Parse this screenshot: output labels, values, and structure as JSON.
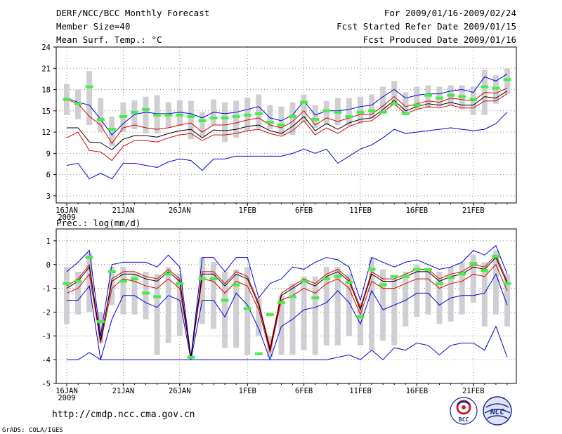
{
  "header": {
    "left": [
      "DERF/NCC/BCC Monthly Forecast",
      "Member Size=40",
      "Mean Surf. Temp.: °C"
    ],
    "right": [
      "For 2009/01/16-2009/02/24",
      "Fcst Started Refer Date 2009/01/15",
      "Fcst Produced Date 2009/01/16"
    ]
  },
  "footer": {
    "url": "http://cmdp.ncc.cma.gov.cn",
    "grads": "GrADS: COLA/IGES",
    "logo_bcc": "BCC",
    "logo_ncc": "NCC"
  },
  "colors": {
    "box": "#cfcfd3",
    "obs": "#44ee44",
    "median": "#000000",
    "iqr": "#dd0000",
    "minmax": "#0000dd",
    "grid": "#777777"
  },
  "chart_data": [
    {
      "type": "boxplot",
      "title": "",
      "xlabel": "",
      "ylabel": "Mean Surf. Temp. (°C)",
      "ylim": [
        2,
        24
      ],
      "yticks": [
        "3",
        "6",
        "9",
        "12",
        "15",
        "18",
        "21",
        "24"
      ],
      "x_days": [
        1,
        40
      ],
      "xticks": [
        {
          "day": 1,
          "label": "16JAN",
          "sub": "2009"
        },
        {
          "day": 6,
          "label": "21JAN"
        },
        {
          "day": 11,
          "label": "26JAN"
        },
        {
          "day": 17,
          "label": "1FEB"
        },
        {
          "day": 22,
          "label": "6FEB"
        },
        {
          "day": 27,
          "label": "11FEB"
        },
        {
          "day": 32,
          "label": "16FEB"
        },
        {
          "day": 37,
          "label": "21FEB"
        }
      ],
      "grid": true,
      "series": [
        {
          "name": "max",
          "values": [
            16.8,
            16.2,
            15.8,
            13.8,
            11.6,
            13.2,
            14.5,
            14.8,
            14.6,
            14.6,
            14.8,
            14.6,
            14.0,
            14.8,
            14.6,
            14.8,
            15.2,
            15.6,
            14.0,
            13.6,
            14.4,
            16.4,
            14.4,
            15.0,
            15.0,
            15.2,
            15.6,
            15.8,
            17.0,
            18.0,
            16.8,
            17.2,
            17.4,
            17.4,
            17.8,
            18.0,
            17.6,
            19.8,
            19.2,
            20.2
          ]
        },
        {
          "name": "q3",
          "values": [
            16.6,
            16.0,
            14.2,
            13.0,
            10.4,
            12.6,
            13.0,
            12.6,
            12.4,
            12.6,
            13.0,
            13.3,
            12.0,
            13.0,
            13.0,
            13.3,
            13.7,
            14.0,
            13.0,
            12.6,
            13.5,
            15.0,
            13.0,
            14.0,
            13.5,
            14.0,
            14.5,
            14.5,
            15.7,
            17.0,
            15.6,
            16.0,
            16.4,
            16.2,
            16.8,
            16.6,
            16.4,
            17.6,
            17.5,
            18.2
          ]
        },
        {
          "name": "median",
          "values": [
            12.6,
            12.6,
            10.6,
            10.5,
            9.5,
            11.0,
            11.5,
            11.5,
            11.3,
            11.8,
            12.2,
            12.4,
            11.2,
            12.3,
            12.2,
            12.4,
            12.8,
            13.0,
            12.2,
            11.8,
            12.8,
            14.2,
            12.2,
            13.2,
            12.4,
            13.3,
            13.8,
            14.0,
            15.2,
            16.5,
            15.0,
            15.6,
            16.0,
            15.8,
            16.2,
            15.8,
            15.8,
            17.0,
            16.8,
            17.8
          ]
        },
        {
          "name": "q1",
          "values": [
            11.2,
            12.0,
            9.4,
            9.2,
            8.0,
            10.0,
            10.8,
            10.8,
            10.6,
            11.2,
            11.6,
            11.8,
            10.8,
            11.6,
            11.6,
            11.8,
            12.2,
            12.4,
            11.8,
            11.4,
            12.2,
            13.6,
            11.6,
            12.6,
            11.8,
            12.8,
            13.4,
            13.6,
            14.8,
            16.0,
            14.6,
            15.2,
            15.6,
            15.4,
            15.8,
            15.4,
            15.4,
            16.4,
            16.4,
            17.4
          ]
        },
        {
          "name": "min",
          "values": [
            7.3,
            7.6,
            5.4,
            6.2,
            5.4,
            7.6,
            7.6,
            7.3,
            7.0,
            7.8,
            8.2,
            8.0,
            6.6,
            8.2,
            8.2,
            8.6,
            8.6,
            8.6,
            8.6,
            8.6,
            9.0,
            9.6,
            9.0,
            9.6,
            7.6,
            8.6,
            9.6,
            10.2,
            11.2,
            12.4,
            11.8,
            12.0,
            12.2,
            12.4,
            12.6,
            12.4,
            12.2,
            12.4,
            13.2,
            14.8
          ]
        },
        {
          "name": "box_top",
          "values": [
            18.8,
            18.0,
            20.6,
            16.8,
            14.2,
            16.2,
            16.5,
            17.0,
            17.2,
            16.2,
            16.5,
            16.4,
            14.8,
            16.6,
            16.2,
            16.4,
            16.9,
            17.3,
            15.8,
            15.6,
            16.2,
            17.3,
            15.8,
            16.4,
            16.8,
            16.8,
            17.0,
            17.3,
            18.4,
            19.2,
            17.6,
            18.4,
            18.6,
            18.4,
            18.6,
            18.6,
            18.4,
            20.8,
            20.0,
            21.0
          ]
        },
        {
          "name": "box_bottom",
          "values": [
            14.4,
            13.8,
            13.0,
            12.0,
            10.0,
            12.0,
            12.4,
            11.8,
            11.8,
            12.6,
            12.8,
            11.0,
            11.4,
            13.0,
            10.6,
            11.2,
            12.2,
            12.5,
            12.4,
            11.6,
            11.6,
            13.4,
            12.6,
            13.0,
            13.0,
            12.9,
            13.2,
            14.0,
            15.2,
            16.0,
            14.8,
            15.2,
            15.4,
            15.6,
            15.8,
            15.2,
            14.4,
            14.4,
            16.0,
            17.4
          ]
        },
        {
          "name": "observed",
          "values": [
            16.6,
            16.0,
            18.4,
            13.8,
            12.4,
            14.2,
            14.8,
            15.2,
            14.4,
            14.4,
            14.4,
            14.2,
            13.6,
            14.0,
            14.0,
            14.2,
            14.4,
            14.6,
            13.4,
            13.0,
            14.2,
            16.2,
            13.8,
            15.0,
            14.8,
            14.2,
            14.8,
            15.0,
            14.8,
            16.0,
            14.6,
            15.8,
            17.2,
            16.8,
            17.2,
            17.0,
            16.6,
            18.4,
            18.2,
            19.4
          ]
        }
      ]
    },
    {
      "type": "boxplot",
      "title": "Prec.: log(mm/d)",
      "xlabel": "",
      "ylabel": "log(mm/d)",
      "ylim": [
        -5,
        1.5
      ],
      "yticks": [
        "-5",
        "-4",
        "-3",
        "-2",
        "-1",
        "0",
        "1"
      ],
      "x_days": [
        1,
        40
      ],
      "xticks": [
        {
          "day": 1,
          "label": "16JAN",
          "sub": "2009"
        },
        {
          "day": 6,
          "label": "21JAN"
        },
        {
          "day": 11,
          "label": "26JAN"
        },
        {
          "day": 17,
          "label": "1FEB"
        },
        {
          "day": 22,
          "label": "6FEB"
        },
        {
          "day": 27,
          "label": "11FEB"
        },
        {
          "day": 32,
          "label": "16FEB"
        },
        {
          "day": 37,
          "label": "21FEB"
        }
      ],
      "grid": true,
      "series": [
        {
          "name": "max",
          "values": [
            -0.3,
            0.1,
            0.6,
            -3.0,
            0.0,
            0.1,
            0.1,
            0.1,
            -0.1,
            0.4,
            -0.1,
            -3.9,
            0.3,
            0.3,
            -0.3,
            0.3,
            0.3,
            -1.4,
            -0.8,
            -0.6,
            -0.1,
            -0.2,
            0.1,
            0.3,
            0.2,
            -0.1,
            -1.5,
            0.3,
            0.1,
            -0.1,
            0.1,
            0.2,
            0.0,
            -0.2,
            -0.1,
            0.1,
            0.6,
            0.4,
            0.8,
            -0.4
          ]
        },
        {
          "name": "q3",
          "values": [
            -0.9,
            -0.6,
            0.0,
            -3.2,
            -0.6,
            -0.3,
            -0.3,
            -0.5,
            -0.6,
            -0.2,
            -0.6,
            -3.9,
            -0.3,
            -0.3,
            -0.8,
            -0.3,
            -0.5,
            -1.6,
            -3.5,
            -1.2,
            -0.9,
            -0.6,
            -0.8,
            -0.4,
            -0.2,
            -0.6,
            -1.8,
            -0.3,
            -0.6,
            -0.6,
            -0.4,
            -0.2,
            -0.2,
            -0.6,
            -0.4,
            -0.3,
            0.0,
            -0.1,
            0.4,
            -0.7
          ]
        },
        {
          "name": "median",
          "values": [
            -1.0,
            -0.7,
            -0.1,
            -3.2,
            -0.7,
            -0.4,
            -0.4,
            -0.6,
            -0.7,
            -0.3,
            -0.7,
            -3.9,
            -0.4,
            -0.4,
            -0.9,
            -0.4,
            -0.6,
            -1.7,
            -3.6,
            -1.3,
            -1.0,
            -0.7,
            -0.9,
            -0.5,
            -0.3,
            -0.7,
            -1.9,
            -0.4,
            -0.7,
            -0.7,
            -0.5,
            -0.3,
            -0.3,
            -0.7,
            -0.5,
            -0.4,
            -0.1,
            -0.2,
            0.3,
            -0.8
          ]
        },
        {
          "name": "q1",
          "values": [
            -1.2,
            -1.0,
            -0.4,
            -3.3,
            -1.0,
            -0.6,
            -0.7,
            -0.9,
            -1.0,
            -0.6,
            -1.0,
            -3.9,
            -0.6,
            -0.7,
            -1.2,
            -0.7,
            -0.9,
            -1.9,
            -3.7,
            -1.5,
            -1.3,
            -1.0,
            -1.2,
            -0.8,
            -0.6,
            -1.0,
            -2.1,
            -0.7,
            -1.0,
            -1.0,
            -0.8,
            -0.6,
            -0.6,
            -1.0,
            -0.8,
            -0.7,
            -0.4,
            -0.5,
            0.0,
            -1.1
          ]
        },
        {
          "name": "min",
          "values": [
            -1.5,
            -1.5,
            -0.9,
            -4.0,
            -2.3,
            -1.3,
            -1.3,
            -1.6,
            -1.8,
            -1.3,
            -1.5,
            -4.0,
            -1.5,
            -1.5,
            -2.2,
            -1.2,
            -1.7,
            -2.7,
            -4.0,
            -2.6,
            -2.3,
            -1.9,
            -1.8,
            -1.6,
            -1.1,
            -1.6,
            -2.5,
            -1.1,
            -1.9,
            -1.7,
            -1.5,
            -1.2,
            -1.2,
            -1.7,
            -1.4,
            -1.3,
            -1.3,
            -1.2,
            -0.4,
            -1.7
          ]
        },
        {
          "name": "bottom",
          "values": [
            -4.0,
            -4.0,
            -3.7,
            -4.0,
            -4.0,
            -4.0,
            -4.0,
            -4.0,
            -4.0,
            -4.0,
            -4.0,
            -4.0,
            -4.0,
            -4.0,
            -4.0,
            -4.0,
            -4.0,
            -4.0,
            -4.0,
            -4.0,
            -4.0,
            -4.0,
            -4.0,
            -4.0,
            -3.9,
            -3.8,
            -4.0,
            -3.6,
            -4.0,
            -3.5,
            -3.6,
            -3.3,
            -3.4,
            -3.8,
            -3.4,
            -3.3,
            -3.3,
            -3.6,
            -2.6,
            -3.9
          ]
        },
        {
          "name": "box_top",
          "values": [
            -0.1,
            -0.3,
            0.5,
            -2.0,
            -0.1,
            -0.1,
            -0.4,
            -0.3,
            -0.4,
            -0.1,
            -0.4,
            -3.8,
            0.3,
            0.1,
            -0.3,
            -0.2,
            -0.1,
            -1.4,
            -3.0,
            -1.3,
            -0.8,
            -0.5,
            -0.5,
            -0.1,
            -0.1,
            -0.4,
            -1.6,
            0.3,
            -0.2,
            -0.6,
            -0.3,
            0.0,
            -0.2,
            -0.3,
            -0.1,
            0.1,
            0.4,
            0.1,
            0.6,
            -0.4
          ]
        },
        {
          "name": "box_bottom",
          "values": [
            -2.5,
            -2.1,
            -2.0,
            -3.3,
            -1.7,
            -2.1,
            -2.1,
            -2.3,
            -3.8,
            -3.3,
            -3.0,
            -3.9,
            -2.5,
            -2.7,
            -3.5,
            -3.5,
            -3.8,
            -3.0,
            -3.9,
            -3.8,
            -3.8,
            -3.6,
            -3.8,
            -3.4,
            -3.4,
            -3.0,
            -3.4,
            -3.6,
            -3.2,
            -3.4,
            -2.6,
            -2.2,
            -2.1,
            -2.5,
            -2.4,
            -2.1,
            -1.6,
            -2.6,
            -2.1,
            -2.6
          ]
        },
        {
          "name": "observed",
          "values": [
            -0.8,
            -0.7,
            0.3,
            -2.4,
            -0.3,
            -0.7,
            -0.6,
            -1.2,
            -1.35,
            -0.4,
            -0.8,
            -3.9,
            -0.6,
            -0.6,
            -1.5,
            -0.85,
            -1.85,
            -3.75,
            -2.1,
            -1.6,
            -1.35,
            -0.7,
            -1.4,
            -0.6,
            -0.5,
            -0.75,
            -2.2,
            -0.2,
            -0.85,
            -0.5,
            -0.5,
            -0.2,
            -0.2,
            -0.8,
            -0.55,
            -0.4,
            0.05,
            -0.25,
            0.35,
            -0.8
          ]
        }
      ]
    }
  ]
}
